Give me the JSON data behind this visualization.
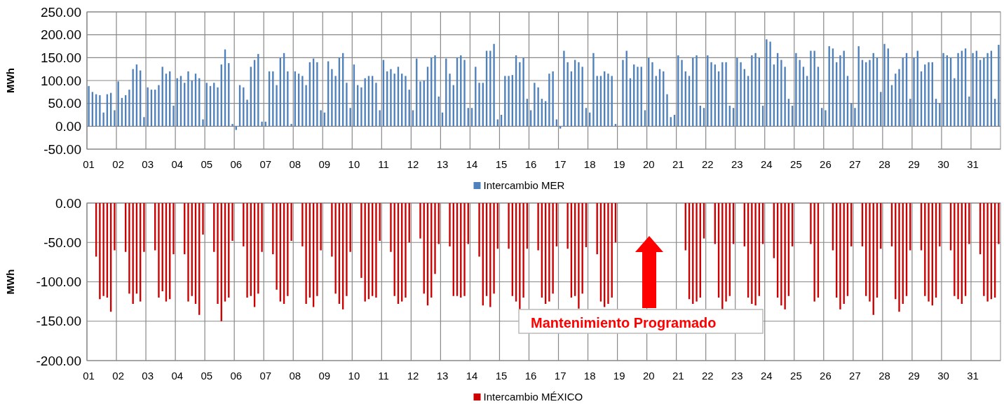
{
  "chart_data": [
    {
      "type": "bar",
      "ylabel": "MWh",
      "grid": true,
      "legend": "bottom",
      "categories": [
        "01",
        null,
        null,
        null,
        null,
        null,
        null,
        null,
        "02",
        null,
        null,
        null,
        null,
        null,
        null,
        null,
        "03",
        null,
        null,
        null,
        null,
        null,
        null,
        null,
        "04",
        null,
        null,
        null,
        null,
        null,
        null,
        null,
        "05",
        null,
        null,
        null,
        null,
        null,
        null,
        null,
        "06",
        null,
        null,
        null,
        null,
        null,
        null,
        null,
        "07",
        null,
        null,
        null,
        null,
        null,
        null,
        null,
        "08",
        null,
        null,
        null,
        null,
        null,
        null,
        null,
        "09",
        null,
        null,
        null,
        null,
        null,
        null,
        null,
        "10",
        null,
        null,
        null,
        null,
        null,
        null,
        null,
        "11",
        null,
        null,
        null,
        null,
        null,
        null,
        null,
        "12",
        null,
        null,
        null,
        null,
        null,
        null,
        null,
        "13",
        null,
        null,
        null,
        null,
        null,
        null,
        null,
        "14",
        null,
        null,
        null,
        null,
        null,
        null,
        null,
        "15",
        null,
        null,
        null,
        null,
        null,
        null,
        null,
        "16",
        null,
        null,
        null,
        null,
        null,
        null,
        null,
        "17",
        null,
        null,
        null,
        null,
        null,
        null,
        null,
        "18",
        null,
        null,
        null,
        null,
        null,
        null,
        null,
        "19",
        null,
        null,
        null,
        null,
        null,
        null,
        null,
        "20",
        null,
        null,
        null,
        null,
        null,
        null,
        null,
        "21",
        null,
        null,
        null,
        null,
        null,
        null,
        null,
        "22",
        null,
        null,
        null,
        null,
        null,
        null,
        null,
        "23",
        null,
        null,
        null,
        null,
        null,
        null,
        null,
        "24",
        null,
        null,
        null,
        null,
        null,
        null,
        null,
        "25",
        null,
        null,
        null,
        null,
        null,
        null,
        null,
        "26",
        null,
        null,
        null,
        null,
        null,
        null,
        null,
        "27",
        null,
        null,
        null,
        null,
        null,
        null,
        null,
        "28",
        null,
        null,
        null,
        null,
        null,
        null,
        null,
        "29",
        null,
        null,
        null,
        null,
        null,
        null,
        null,
        "30",
        null,
        null,
        null,
        null,
        null,
        null,
        null,
        "31",
        null,
        null,
        null,
        null,
        null,
        null,
        null
      ],
      "ylim": [
        -50,
        250
      ],
      "yticks": [
        {
          "value": -50,
          "label": "-50.00"
        },
        {
          "value": 0,
          "label": "0.00"
        },
        {
          "value": 50,
          "label": "50.00"
        },
        {
          "value": 100,
          "label": "100.00"
        },
        {
          "value": 150,
          "label": "150.00"
        },
        {
          "value": 200,
          "label": "200.00"
        },
        {
          "value": 250,
          "label": "250.00"
        }
      ],
      "series": [
        {
          "name": "Intercambio MER",
          "color": "#4f81bd",
          "values": [
            88,
            75,
            70,
            68,
            30,
            70,
            73,
            35,
            98,
            62,
            68,
            80,
            125,
            135,
            122,
            20,
            85,
            80,
            80,
            90,
            130,
            115,
            120,
            45,
            105,
            110,
            95,
            120,
            100,
            115,
            105,
            15,
            95,
            88,
            95,
            85,
            135,
            168,
            138,
            5,
            -8,
            90,
            85,
            58,
            130,
            145,
            158,
            10,
            10,
            120,
            120,
            90,
            150,
            160,
            120,
            5,
            120,
            115,
            110,
            90,
            140,
            148,
            140,
            35,
            30,
            142,
            125,
            110,
            150,
            160,
            95,
            40,
            135,
            90,
            85,
            105,
            110,
            110,
            95,
            35,
            145,
            120,
            125,
            115,
            130,
            115,
            110,
            80,
            35,
            148,
            98,
            100,
            130,
            150,
            155,
            65,
            30,
            148,
            115,
            90,
            150,
            155,
            145,
            40,
            40,
            130,
            95,
            95,
            165,
            165,
            180,
            15,
            25,
            110,
            110,
            112,
            155,
            140,
            150,
            60,
            35,
            95,
            85,
            60,
            55,
            115,
            120,
            15,
            -5,
            165,
            140,
            120,
            145,
            140,
            130,
            40,
            30,
            160,
            110,
            110,
            120,
            115,
            110,
            5,
            0,
            145,
            165,
            105,
            135,
            130,
            130,
            35,
            150,
            140,
            110,
            125,
            120,
            70,
            20,
            25,
            155,
            145,
            120,
            110,
            150,
            155,
            45,
            40,
            155,
            140,
            135,
            120,
            140,
            140,
            45,
            40,
            150,
            140,
            125,
            110,
            155,
            160,
            150,
            45,
            190,
            185,
            135,
            160,
            145,
            130,
            60,
            45,
            160,
            145,
            130,
            110,
            165,
            165,
            130,
            40,
            35,
            175,
            170,
            140,
            155,
            165,
            110,
            50,
            40,
            175,
            145,
            140,
            145,
            160,
            150,
            75,
            180,
            170,
            90,
            115,
            125,
            150,
            160,
            60,
            150,
            165,
            120,
            135,
            140,
            140,
            60,
            50,
            160,
            155,
            150,
            105,
            160,
            165,
            170,
            65,
            160,
            165,
            145,
            150,
            160,
            165,
            60,
            178
          ]
        }
      ]
    },
    {
      "type": "bar",
      "ylabel": "MWh",
      "grid": true,
      "legend": "bottom",
      "categories": [
        "01",
        null,
        null,
        null,
        null,
        null,
        null,
        null,
        "02",
        null,
        null,
        null,
        null,
        null,
        null,
        null,
        "03",
        null,
        null,
        null,
        null,
        null,
        null,
        null,
        "04",
        null,
        null,
        null,
        null,
        null,
        null,
        null,
        "05",
        null,
        null,
        null,
        null,
        null,
        null,
        null,
        "06",
        null,
        null,
        null,
        null,
        null,
        null,
        null,
        "07",
        null,
        null,
        null,
        null,
        null,
        null,
        null,
        "08",
        null,
        null,
        null,
        null,
        null,
        null,
        null,
        "09",
        null,
        null,
        null,
        null,
        null,
        null,
        null,
        "10",
        null,
        null,
        null,
        null,
        null,
        null,
        null,
        "11",
        null,
        null,
        null,
        null,
        null,
        null,
        null,
        "12",
        null,
        null,
        null,
        null,
        null,
        null,
        null,
        "13",
        null,
        null,
        null,
        null,
        null,
        null,
        null,
        "14",
        null,
        null,
        null,
        null,
        null,
        null,
        null,
        "15",
        null,
        null,
        null,
        null,
        null,
        null,
        null,
        "16",
        null,
        null,
        null,
        null,
        null,
        null,
        null,
        "17",
        null,
        null,
        null,
        null,
        null,
        null,
        null,
        "18",
        null,
        null,
        null,
        null,
        null,
        null,
        null,
        "19",
        null,
        null,
        null,
        null,
        null,
        null,
        null,
        "20",
        null,
        null,
        null,
        null,
        null,
        null,
        null,
        "21",
        null,
        null,
        null,
        null,
        null,
        null,
        null,
        "22",
        null,
        null,
        null,
        null,
        null,
        null,
        null,
        "23",
        null,
        null,
        null,
        null,
        null,
        null,
        null,
        "24",
        null,
        null,
        null,
        null,
        null,
        null,
        null,
        "25",
        null,
        null,
        null,
        null,
        null,
        null,
        null,
        "26",
        null,
        null,
        null,
        null,
        null,
        null,
        null,
        "27",
        null,
        null,
        null,
        null,
        null,
        null,
        null,
        "28",
        null,
        null,
        null,
        null,
        null,
        null,
        null,
        "29",
        null,
        null,
        null,
        null,
        null,
        null,
        null,
        "30",
        null,
        null,
        null,
        null,
        null,
        null,
        null,
        "31",
        null,
        null,
        null,
        null,
        null,
        null,
        null
      ],
      "ylim": [
        -200,
        0
      ],
      "yticks": [
        {
          "value": -200,
          "label": "-200.00"
        },
        {
          "value": -150,
          "label": "-150.00"
        },
        {
          "value": -100,
          "label": "-100.00"
        },
        {
          "value": -50,
          "label": "-50.00"
        },
        {
          "value": 0,
          "label": "0.00"
        }
      ],
      "annotations": [
        "Mantenimiento Programado"
      ],
      "series": [
        {
          "name": "Intercambio MÉXICO",
          "color": "#cc0000",
          "values": [
            null,
            null,
            -68,
            -122,
            -118,
            -120,
            -138,
            -60,
            null,
            null,
            -62,
            -115,
            -128,
            -115,
            -125,
            -62,
            null,
            null,
            -60,
            -120,
            -112,
            -125,
            -122,
            -65,
            null,
            null,
            -65,
            -125,
            -118,
            -128,
            -142,
            -40,
            null,
            null,
            -62,
            -128,
            -150,
            -125,
            -120,
            -48,
            null,
            null,
            -55,
            -120,
            -118,
            -132,
            -115,
            -62,
            null,
            null,
            -65,
            -110,
            -125,
            -128,
            -118,
            -48,
            null,
            null,
            -55,
            -128,
            -120,
            -132,
            -118,
            -60,
            null,
            null,
            -68,
            -115,
            -128,
            -135,
            -118,
            -62,
            null,
            null,
            -95,
            -125,
            -122,
            -118,
            -120,
            -48,
            null,
            null,
            -62,
            -118,
            -128,
            -125,
            -120,
            -50,
            null,
            null,
            -45,
            -115,
            -130,
            -120,
            -90,
            -52,
            null,
            null,
            -55,
            -118,
            -118,
            -120,
            -118,
            -52,
            null,
            null,
            -68,
            -130,
            -118,
            -132,
            -115,
            -58,
            null,
            null,
            -58,
            -118,
            -125,
            -135,
            -120,
            -58,
            null,
            null,
            -60,
            -120,
            -128,
            -125,
            -115,
            -55,
            null,
            null,
            -58,
            -120,
            -118,
            -134,
            -115,
            -56,
            null,
            null,
            -65,
            -125,
            -132,
            -128,
            -120,
            -50,
            null,
            null,
            null,
            null,
            null,
            null,
            null,
            null,
            null,
            null,
            null,
            null,
            null,
            null,
            null,
            null,
            null,
            null,
            -60,
            -122,
            -128,
            -125,
            -120,
            -45,
            null,
            null,
            -52,
            -120,
            -135,
            -125,
            -118,
            -52,
            null,
            null,
            -55,
            -120,
            -128,
            -130,
            -118,
            -52,
            null,
            null,
            -70,
            -120,
            -130,
            -135,
            -118,
            -55,
            null,
            null,
            null,
            null,
            -52,
            -125,
            -120,
            null,
            null,
            null,
            -60,
            -120,
            -135,
            -128,
            -118,
            -55,
            null,
            null,
            -55,
            -118,
            -125,
            -142,
            -120,
            -58,
            null,
            null,
            -55,
            -122,
            -138,
            -128,
            -118,
            -60,
            null,
            null,
            -60,
            -118,
            -125,
            -130,
            -120,
            -55,
            null,
            null,
            -60,
            -118,
            -122,
            -128,
            -118,
            -52,
            null,
            null,
            -65,
            -118,
            -125,
            -122,
            -120,
            -52
          ]
        }
      ]
    }
  ]
}
